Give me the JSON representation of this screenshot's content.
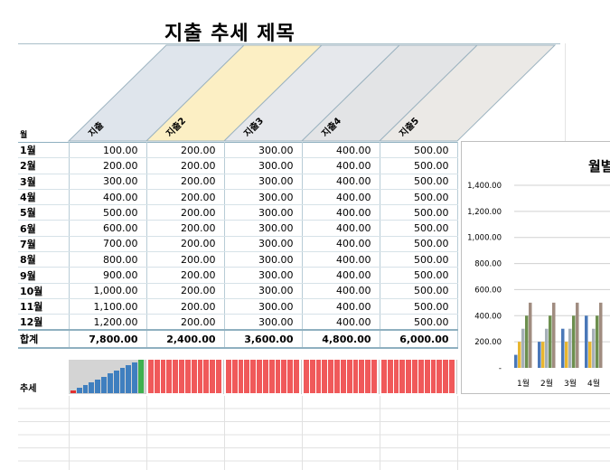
{
  "sheet": {
    "title": "지출 추세 제목",
    "month_header": "월",
    "trend_label": "추세"
  },
  "columns": [
    "지출",
    "지출2",
    "지출3",
    "지출4",
    "지출5"
  ],
  "header_colors": [
    "#dfe5ec",
    "#fcefc4",
    "#e6e8ec",
    "#e3e4e6",
    "#ebe9e6"
  ],
  "rows": [
    {
      "month": "1월",
      "values": [
        "100.00",
        "200.00",
        "300.00",
        "400.00",
        "500.00"
      ]
    },
    {
      "month": "2월",
      "values": [
        "200.00",
        "200.00",
        "300.00",
        "400.00",
        "500.00"
      ]
    },
    {
      "month": "3월",
      "values": [
        "300.00",
        "200.00",
        "300.00",
        "400.00",
        "500.00"
      ]
    },
    {
      "month": "4월",
      "values": [
        "400.00",
        "200.00",
        "300.00",
        "400.00",
        "500.00"
      ]
    },
    {
      "month": "5월",
      "values": [
        "500.00",
        "200.00",
        "300.00",
        "400.00",
        "500.00"
      ]
    },
    {
      "month": "6월",
      "values": [
        "600.00",
        "200.00",
        "300.00",
        "400.00",
        "500.00"
      ]
    },
    {
      "month": "7월",
      "values": [
        "700.00",
        "200.00",
        "300.00",
        "400.00",
        "500.00"
      ]
    },
    {
      "month": "8월",
      "values": [
        "800.00",
        "200.00",
        "300.00",
        "400.00",
        "500.00"
      ]
    },
    {
      "month": "9월",
      "values": [
        "900.00",
        "200.00",
        "300.00",
        "400.00",
        "500.00"
      ]
    },
    {
      "month": "10월",
      "values": [
        "1,000.00",
        "200.00",
        "300.00",
        "400.00",
        "500.00"
      ]
    },
    {
      "month": "11월",
      "values": [
        "1,100.00",
        "200.00",
        "300.00",
        "400.00",
        "500.00"
      ]
    },
    {
      "month": "12월",
      "values": [
        "1,200.00",
        "200.00",
        "300.00",
        "400.00",
        "500.00"
      ]
    }
  ],
  "totals": {
    "label": "합계",
    "values": [
      "7,800.00",
      "2,400.00",
      "3,600.00",
      "4,800.00",
      "6,000.00"
    ]
  },
  "sparklines": {
    "colors": {
      "increasing": "#3f7fbf",
      "flat": "#f0595a",
      "first_point": "#e03030",
      "last_point": "#3fb04f"
    }
  },
  "chart_data": {
    "type": "bar",
    "title": "월별",
    "categories": [
      "1월",
      "2월",
      "3월",
      "4월"
    ],
    "series": [
      {
        "name": "지출",
        "color": "#4a78b8",
        "values": [
          100,
          200,
          300,
          400
        ]
      },
      {
        "name": "지출2",
        "color": "#e8b630",
        "values": [
          200,
          200,
          200,
          200
        ]
      },
      {
        "name": "지출3",
        "color": "#a6b0b8",
        "values": [
          300,
          300,
          300,
          300
        ]
      },
      {
        "name": "지출4",
        "color": "#6d8f4e",
        "values": [
          400,
          400,
          400,
          400
        ]
      },
      {
        "name": "지출5",
        "color": "#a08c80",
        "values": [
          500,
          500,
          500,
          500
        ]
      }
    ],
    "ylim": [
      0,
      1400
    ],
    "yticks": [
      "-",
      "200.00",
      "400.00",
      "600.00",
      "800.00",
      "1,000.00",
      "1,200.00",
      "1,400.00"
    ],
    "grid": true
  }
}
